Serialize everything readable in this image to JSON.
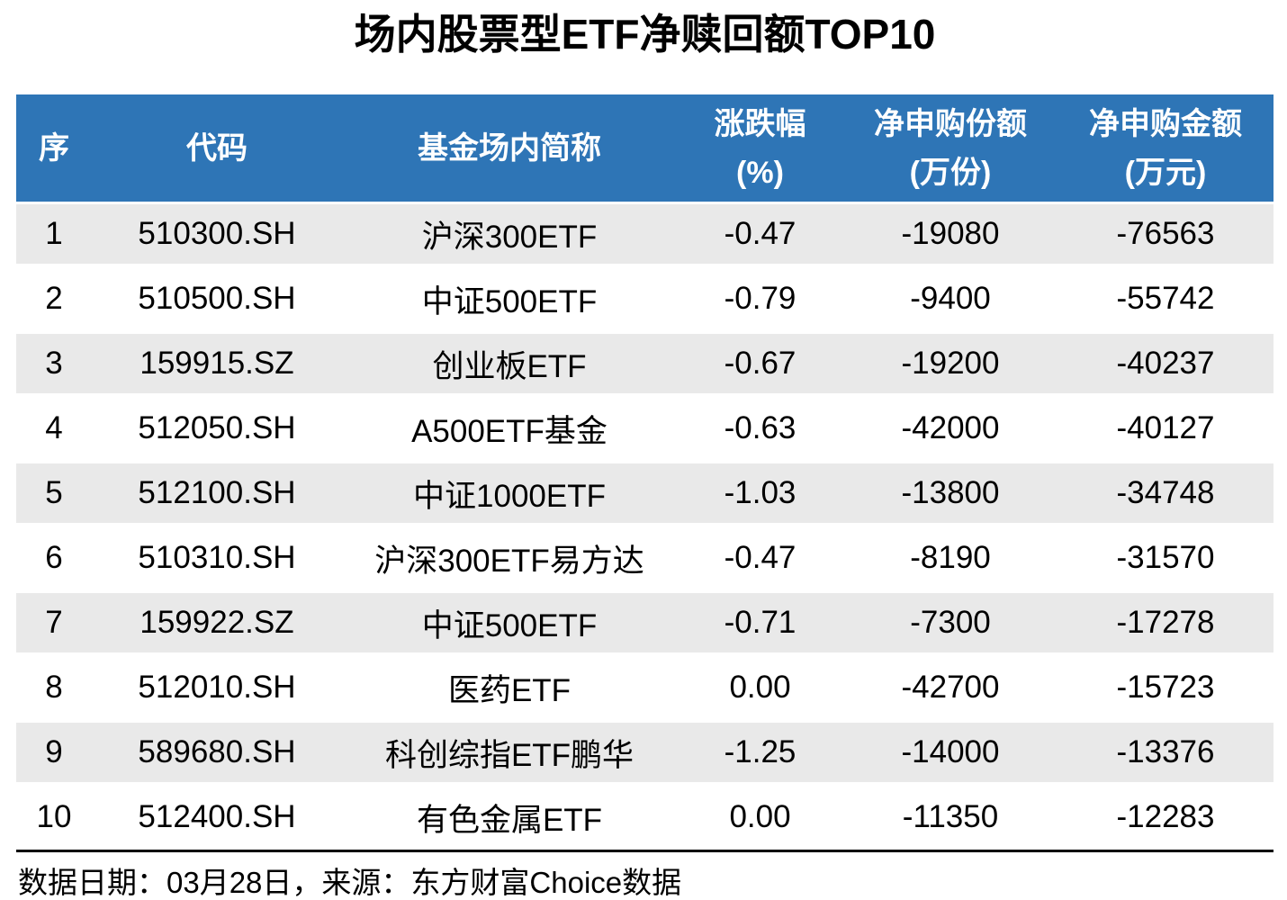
{
  "chart_data": {
    "type": "table",
    "title": "场内股票型ETF净赎回额TOP10",
    "columns": [
      {
        "label": "序",
        "sub": ""
      },
      {
        "label": "代码",
        "sub": ""
      },
      {
        "label": "基金场内简称",
        "sub": ""
      },
      {
        "label": "涨跌幅",
        "sub": "(%)"
      },
      {
        "label": "净申购份额",
        "sub": "(万份)"
      },
      {
        "label": "净申购金额",
        "sub": "(万元)"
      }
    ],
    "rows": [
      [
        "1",
        "510300.SH",
        "沪深300ETF",
        "-0.47",
        "-19080",
        "-76563"
      ],
      [
        "2",
        "510500.SH",
        "中证500ETF",
        "-0.79",
        "-9400",
        "-55742"
      ],
      [
        "3",
        "159915.SZ",
        "创业板ETF",
        "-0.67",
        "-19200",
        "-40237"
      ],
      [
        "4",
        "512050.SH",
        "A500ETF基金",
        "-0.63",
        "-42000",
        "-40127"
      ],
      [
        "5",
        "512100.SH",
        "中证1000ETF",
        "-1.03",
        "-13800",
        "-34748"
      ],
      [
        "6",
        "510310.SH",
        "沪深300ETF易方达",
        "-0.47",
        "-8190",
        "-31570"
      ],
      [
        "7",
        "159922.SZ",
        "中证500ETF",
        "-0.71",
        "-7300",
        "-17278"
      ],
      [
        "8",
        "512010.SH",
        "医药ETF",
        "0.00",
        "-42700",
        "-15723"
      ],
      [
        "9",
        "589680.SH",
        "科创综指ETF鹏华",
        "-1.25",
        "-14000",
        "-13376"
      ],
      [
        "10",
        "512400.SH",
        "有色金属ETF",
        "0.00",
        "-11350",
        "-12283"
      ]
    ],
    "footer_note": "数据日期：03月28日，来源：东方财富Choice数据",
    "layout_hints": "striped rows (odd rows light gray), blue header band, black divider above footer note"
  },
  "colors": {
    "header_bg": "#2E75B6",
    "header_text": "#FFFFFF",
    "stripe_bg": "#E9E9E9",
    "body_text": "#000000"
  }
}
